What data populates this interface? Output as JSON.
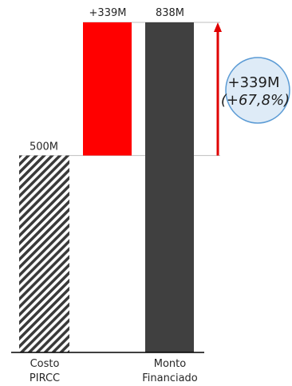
{
  "chart_data": {
    "type": "waterfall",
    "categories": [
      "Costo PIRCC",
      "Monto Financiado"
    ],
    "category_lines": [
      [
        "Costo",
        "PIRCC"
      ],
      [
        "Monto",
        "Financiado"
      ]
    ],
    "base_value": 500,
    "increment_value": 339,
    "total_value": 838,
    "ylim": [
      0,
      838
    ],
    "data_labels": {
      "base": "500M",
      "increment": "+339M",
      "total": "838M"
    },
    "callout": {
      "line1": "+339M",
      "line2": "(+67,8%)"
    },
    "grid": false,
    "legend": "none"
  },
  "colors": {
    "base_hatch_dark": "#3a3a3a",
    "base_hatch_light": "#ffffff",
    "increment_bar": "#ff0000",
    "total_bar": "#404040",
    "arrow": "#e00000",
    "callout_fill": "#deebf7",
    "callout_stroke": "#5b9bd5",
    "axis": "#000000",
    "guide_line": "#bfbfbf"
  }
}
